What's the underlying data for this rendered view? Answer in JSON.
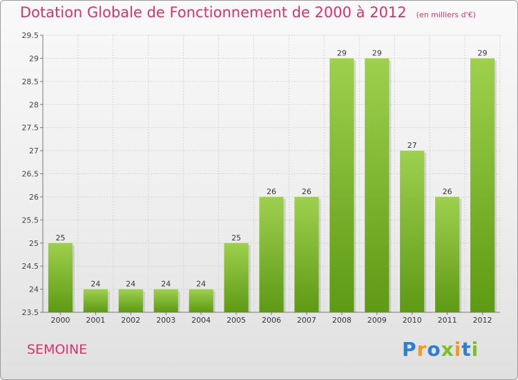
{
  "header": {
    "title": "Dotation Globale de Fonctionnement de 2000 à 2012",
    "unit": "(en milliers d'€)"
  },
  "footer": {
    "city": "SEMOINE",
    "logo": "Proxiti"
  },
  "colors": {
    "title": "#d6336c",
    "bar_light": "#9ed04e",
    "bar_dark": "#5e9a14"
  },
  "chart_data": {
    "type": "bar",
    "categories": [
      "2000",
      "2001",
      "2002",
      "2003",
      "2004",
      "2005",
      "2006",
      "2007",
      "2008",
      "2009",
      "2010",
      "2011",
      "2012"
    ],
    "values": [
      25,
      24,
      24,
      24,
      24,
      25,
      26,
      26,
      29,
      29,
      27,
      26,
      29
    ],
    "ylim": [
      23.5,
      29.5
    ],
    "yticks": [
      "23.5",
      "24",
      "24.5",
      "25",
      "25.5",
      "26",
      "26.5",
      "27",
      "27.5",
      "28",
      "28.5",
      "29",
      "29.5"
    ],
    "grid": true,
    "legend": "none"
  }
}
